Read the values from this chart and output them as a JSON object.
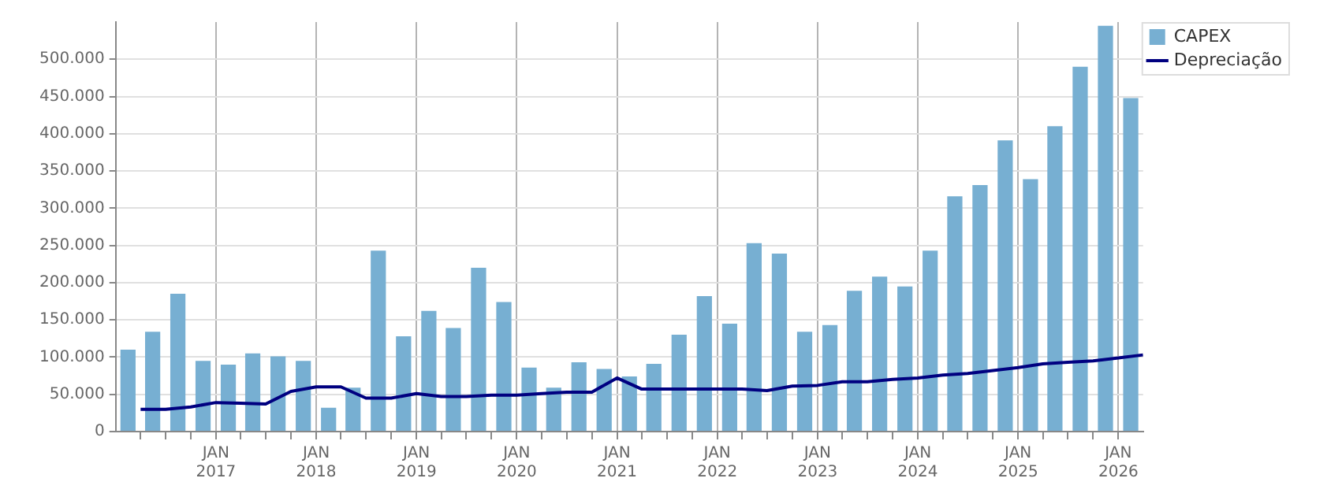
{
  "chart_data": {
    "type": "bar",
    "x": [
      "2016-02-15",
      "2016-05-15",
      "2016-08-15",
      "2016-11-15",
      "2017-02-15",
      "2017-05-15",
      "2017-08-15",
      "2017-11-15",
      "2018-02-15",
      "2018-05-15",
      "2018-08-15",
      "2018-11-15",
      "2019-02-15",
      "2019-05-15",
      "2019-08-15",
      "2019-11-15",
      "2020-02-15",
      "2020-05-15",
      "2020-08-15",
      "2020-11-15",
      "2021-02-15",
      "2021-05-15",
      "2021-08-15",
      "2021-11-15",
      "2022-02-15",
      "2022-05-15",
      "2022-08-15",
      "2022-11-15",
      "2023-02-15",
      "2023-05-15",
      "2023-08-15",
      "2023-11-15",
      "2024-02-15",
      "2024-05-15",
      "2024-08-15",
      "2024-11-15",
      "2025-02-15",
      "2025-05-15",
      "2025-08-15",
      "2025-11-15",
      "2026-02-15"
    ],
    "series": [
      {
        "name": "CAPEX",
        "color": "#77afd2",
        "values": [
          110000,
          134000,
          185000,
          95000,
          90000,
          105000,
          101000,
          95000,
          32000,
          59000,
          243000,
          128000,
          162000,
          139000,
          220000,
          174000,
          86000,
          59000,
          93000,
          84000,
          74000,
          91000,
          130000,
          182000,
          145000,
          253000,
          239000,
          134000,
          143000,
          189000,
          208000,
          195000,
          243000,
          316000,
          331000,
          391000,
          339000,
          410000,
          490000,
          545000,
          448000
        ]
      },
      {
        "name": "Depreciação",
        "type": "line",
        "color": "#000080",
        "marker": "none",
        "line_style": "solid",
        "x": [
          "2016-04-01",
          "2016-07-01",
          "2016-10-01",
          "2017-01-01",
          "2017-04-01",
          "2017-07-01",
          "2017-10-01",
          "2018-01-01",
          "2018-04-01",
          "2018-07-01",
          "2018-10-01",
          "2019-01-01",
          "2019-04-01",
          "2019-07-01",
          "2019-10-01",
          "2020-01-01",
          "2020-04-01",
          "2020-07-01",
          "2020-10-01",
          "2021-01-01",
          "2021-04-01",
          "2021-07-01",
          "2021-10-01",
          "2022-01-01",
          "2022-04-01",
          "2022-07-01",
          "2022-10-01",
          "2023-01-01",
          "2023-04-01",
          "2023-07-01",
          "2023-10-01",
          "2024-01-01",
          "2024-04-01",
          "2024-07-01",
          "2024-10-01",
          "2025-01-01",
          "2025-04-01",
          "2025-07-01",
          "2025-10-01",
          "2026-01-01",
          "2026-04-01"
        ],
        "values": [
          30000,
          30000,
          33000,
          39000,
          38000,
          37000,
          54000,
          60000,
          60000,
          45000,
          45000,
          51000,
          47000,
          47000,
          49000,
          49000,
          51000,
          53000,
          53000,
          72000,
          57000,
          57000,
          57000,
          57000,
          57000,
          55000,
          61000,
          62000,
          67000,
          67000,
          70000,
          72000,
          76000,
          78000,
          82000,
          86000,
          91000,
          93000,
          95000,
          99000,
          103000
        ]
      }
    ],
    "xlim": [
      "2016-01-01",
      "2026-04-01"
    ],
    "xticks": [
      {
        "value": "2016-04-01",
        "label": null
      },
      {
        "value": "2016-07-01",
        "label": null
      },
      {
        "value": "2016-10-01",
        "label": null
      },
      {
        "value": "2017-01-01",
        "label": "JAN\n2017"
      },
      {
        "value": "2017-04-01",
        "label": null
      },
      {
        "value": "2017-07-01",
        "label": null
      },
      {
        "value": "2017-10-01",
        "label": null
      },
      {
        "value": "2018-01-01",
        "label": "JAN\n2018"
      },
      {
        "value": "2018-04-01",
        "label": null
      },
      {
        "value": "2018-07-01",
        "label": null
      },
      {
        "value": "2018-10-01",
        "label": null
      },
      {
        "value": "2019-01-01",
        "label": "JAN\n2019"
      },
      {
        "value": "2019-04-01",
        "label": null
      },
      {
        "value": "2019-07-01",
        "label": null
      },
      {
        "value": "2019-10-01",
        "label": null
      },
      {
        "value": "2020-01-01",
        "label": "JAN\n2020"
      },
      {
        "value": "2020-04-01",
        "label": null
      },
      {
        "value": "2020-07-01",
        "label": null
      },
      {
        "value": "2020-10-01",
        "label": null
      },
      {
        "value": "2021-01-01",
        "label": "JAN\n2021"
      },
      {
        "value": "2021-04-01",
        "label": null
      },
      {
        "value": "2021-07-01",
        "label": null
      },
      {
        "value": "2021-10-01",
        "label": null
      },
      {
        "value": "2022-01-01",
        "label": "JAN\n2022"
      },
      {
        "value": "2022-04-01",
        "label": null
      },
      {
        "value": "2022-07-01",
        "label": null
      },
      {
        "value": "2022-10-01",
        "label": null
      },
      {
        "value": "2023-01-01",
        "label": "JAN\n2023"
      },
      {
        "value": "2023-04-01",
        "label": null
      },
      {
        "value": "2023-07-01",
        "label": null
      },
      {
        "value": "2023-10-01",
        "label": null
      },
      {
        "value": "2024-01-01",
        "label": "JAN\n2024"
      },
      {
        "value": "2024-04-01",
        "label": null
      },
      {
        "value": "2024-07-01",
        "label": null
      },
      {
        "value": "2024-10-01",
        "label": null
      },
      {
        "value": "2025-01-01",
        "label": "JAN\n2025"
      },
      {
        "value": "2025-04-01",
        "label": null
      },
      {
        "value": "2025-07-01",
        "label": null
      },
      {
        "value": "2025-10-01",
        "label": null
      },
      {
        "value": "2026-01-01",
        "label": "JAN\n2026"
      }
    ],
    "ylim": [
      0,
      550000
    ],
    "yticks": [
      {
        "value": 0,
        "label": "0"
      },
      {
        "value": 50000,
        "label": "50.000"
      },
      {
        "value": 100000,
        "label": "100.000"
      },
      {
        "value": 150000,
        "label": "150.000"
      },
      {
        "value": 200000,
        "label": "200.000"
      },
      {
        "value": 250000,
        "label": "250.000"
      },
      {
        "value": 300000,
        "label": "300.000"
      },
      {
        "value": 350000,
        "label": "350.000"
      },
      {
        "value": 400000,
        "label": "400.000"
      },
      {
        "value": 450000,
        "label": "450.000"
      },
      {
        "value": 500000,
        "label": "500.000"
      }
    ],
    "grid": true,
    "legend": "top right"
  }
}
